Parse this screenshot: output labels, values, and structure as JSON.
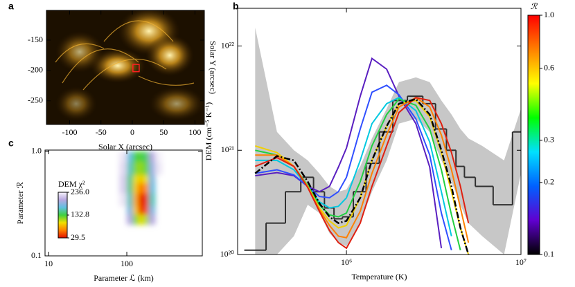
{
  "chart_data": [
    {
      "type": "image",
      "label": "a",
      "xlabel": "Solar X (arcsec)",
      "ylabel": "Solar Y (arcsec)",
      "xlim": [
        -137,
        115
      ],
      "ylim": [
        -289,
        -101
      ],
      "xticks": [
        -100,
        -50,
        0,
        50,
        100
      ],
      "yticks": [
        -150,
        -200,
        -250
      ],
      "region": {
        "x": [
          1,
          11
        ],
        "y": [
          -202,
          -190
        ],
        "color": "#ff2020"
      }
    },
    {
      "type": "line",
      "label": "b",
      "xlabel": "Temperature (K)",
      "ylabel": "DEM (cm⁻⁵ K⁻¹)",
      "xscale": "log",
      "yscale": "log",
      "xlim": [
        238000,
        10000000
      ],
      "ylim": [
        1e+20,
        2.3e+22
      ],
      "xticks": [
        {
          "value": 1000000,
          "label": "10⁶"
        },
        {
          "value": 10000000,
          "label": "10⁷"
        }
      ],
      "yticks": [
        {
          "value": 1e+20,
          "label": "10²⁰"
        },
        {
          "value": 1e+21,
          "label": "10²¹"
        },
        {
          "value": 1e+22,
          "label": "10²²"
        }
      ],
      "x": [
        300000,
        400000,
        500000,
        600000,
        700000,
        800000,
        900000,
        1000000,
        1200000,
        1400000,
        1700000,
        2000000,
        2500000,
        3000000,
        3500000,
        4000000,
        4500000,
        5000000,
        6000000,
        8000000,
        10000000
      ],
      "band": {
        "color": "#b4b4b4",
        "upper": [
          1.5e+22,
          1.5e+21,
          1e+21,
          8e+20,
          6e+20,
          4.5e+20,
          4e+20,
          4.2e+20,
          7e+20,
          1.3e+21,
          2.5e+21,
          4.5e+21,
          5e+21,
          4.5e+21,
          3e+21,
          2.2e+21,
          1.6e+21,
          1.3e+21,
          1.1e+21,
          8e+20,
          2.5e+21
        ],
        "lower": [
          1e+20,
          1e+20,
          1.5e+20,
          3e+20,
          2.5e+20,
          1.6e+20,
          1.3e+20,
          1.2e+20,
          2e+20,
          4e+20,
          8e+20,
          1.8e+21,
          2e+21,
          1.5e+21,
          8e+20,
          5e+20,
          3e+20,
          2e+20,
          1.5e+20,
          1e+20,
          6e+20
        ]
      },
      "series": [
        {
          "style": "step",
          "color": "#303030",
          "values": [
            1.1e+20,
            2e+20,
            4e+20,
            5.5e+20,
            4e+20,
            2.8e+20,
            2.2e+20,
            2.3e+20,
            4e+20,
            7.5e+20,
            1.5e+21,
            3e+21,
            3.3e+21,
            2.8e+21,
            1.6e+21,
            1e+21,
            7e+20,
            5.5e+20,
            4.5e+20,
            3e+20,
            1.5e+21
          ]
        },
        {
          "style": "solid",
          "color": "#5a1fc0",
          "values": [
            5.7e+20,
            6.1e+20,
            5.7e+20,
            4.5e+20,
            4e+20,
            4.5e+20,
            6.9e+20,
            1.05e+21,
            3.3e+21,
            7.6e+21,
            6e+21,
            3.3e+21,
            1.8e+21,
            6.9e+20,
            1.15e+20,
            null,
            null,
            null,
            null,
            null,
            null
          ]
        },
        {
          "style": "solid",
          "color": "#3050ff",
          "values": [
            6e+20,
            6.5e+20,
            5.8e+20,
            4.5e+20,
            3.6e+20,
            3.5e+20,
            4e+20,
            5.5e+20,
            1.6e+21,
            3.6e+21,
            4.2e+21,
            3.4e+21,
            2e+21,
            9e+20,
            2.5e+20,
            1.1e+20,
            null,
            null,
            null,
            null,
            null
          ]
        },
        {
          "style": "solid",
          "color": "#00c8e0",
          "values": [
            8e+20,
            8e+20,
            6.5e+20,
            4.5e+20,
            3.2e+20,
            2.8e+20,
            2.9e+20,
            3.5e+20,
            8e+20,
            1.8e+21,
            2.8e+21,
            3.2e+21,
            2.4e+21,
            1.2e+21,
            4e+20,
            1.5e+20,
            null,
            null,
            null,
            null,
            null
          ]
        },
        {
          "style": "solid",
          "color": "#20d040",
          "values": [
            1e+21,
            9e+20,
            7e+20,
            4.6e+20,
            3e+20,
            2.4e+20,
            2.3e+20,
            2.5e+20,
            5e+20,
            1.1e+21,
            2.2e+21,
            3.1e+21,
            2.7e+21,
            1.6e+21,
            6.5e+20,
            2.4e+20,
            1.1e+20,
            null,
            null,
            null,
            null
          ]
        },
        {
          "style": "solid",
          "color": "#f0d000",
          "values": [
            1.1e+21,
            9.5e+20,
            7e+20,
            4.5e+20,
            2.8e+20,
            2.1e+20,
            1.8e+20,
            1.9e+20,
            3.5e+20,
            8e+20,
            1.7e+21,
            2.8e+21,
            3e+21,
            2.1e+21,
            9.5e+20,
            4e+20,
            1.8e+20,
            1e+20,
            null,
            null,
            null
          ]
        },
        {
          "style": "solid",
          "color": "#ff8000",
          "values": [
            9e+20,
            9e+20,
            7e+20,
            4.4e+20,
            2.7e+20,
            1.9e+20,
            1.5e+20,
            1.45e+20,
            2.6e+20,
            6e+20,
            1.4e+21,
            2.6e+21,
            3.2e+21,
            2.6e+21,
            1.4e+21,
            6.5e+20,
            2.8e+20,
            1.3e+20,
            null,
            null,
            null
          ]
        },
        {
          "style": "solid",
          "color": "#e02010",
          "values": [
            7e+20,
            8.5e+20,
            7e+20,
            4.4e+20,
            2.6e+20,
            1.7e+20,
            1.3e+20,
            1.15e+20,
            2e+20,
            4.5e+20,
            1.1e+21,
            2.3e+21,
            3.2e+21,
            3e+21,
            1.8e+21,
            9.5e+20,
            4.5e+20,
            2e+20,
            null,
            null,
            null
          ]
        },
        {
          "style": "dashdot",
          "color": "#000000",
          "values": [
            6e+20,
            8.8e+20,
            8e+20,
            5e+20,
            3.1e+20,
            2.3e+20,
            2e+20,
            2.1e+20,
            3.5e+20,
            8e+20,
            1.7e+21,
            2.8e+21,
            3.1e+21,
            2.2e+21,
            1e+21,
            4.5e+20,
            1.8e+20,
            1e+20,
            null,
            null,
            null
          ]
        }
      ],
      "colorbar": {
        "title": "ℛ",
        "scale": "log",
        "lim": [
          0.1,
          1
        ],
        "ticks": [
          0.1,
          0.2,
          0.3,
          0.6,
          {
            "value": 1,
            "label": "1.0"
          }
        ],
        "colors": [
          "#000000",
          "#6000d0",
          "#0060ff",
          "#00e0ff",
          "#00ff00",
          "#ffff00",
          "#ff8000",
          "#ff0000"
        ]
      }
    },
    {
      "type": "heatmap",
      "label": "c",
      "xlabel": "Parameter ℒ (km)",
      "ylabel": "Parameter ℛ",
      "xscale": "log",
      "yscale": "log",
      "xlim": [
        9,
        923
      ],
      "ylim": [
        0.1,
        1.03
      ],
      "xticks": [
        10,
        100
      ],
      "yticks": [
        0.1,
        {
          "value": 1,
          "label": "1.0"
        }
      ],
      "x_edges": [
        80,
        100,
        120,
        140,
        160,
        190,
        230,
        280
      ],
      "y_edges": [
        0.2,
        0.25,
        0.3,
        0.4,
        0.5,
        0.6,
        0.8,
        1.0
      ],
      "values": [
        [
          null,
          200,
          120,
          100,
          110,
          200,
          null
        ],
        [
          null,
          180,
          90,
          40,
          50,
          180,
          null
        ],
        [
          230,
          160,
          80,
          35,
          40,
          160,
          null
        ],
        [
          220,
          150,
          90,
          60,
          70,
          170,
          null
        ],
        [
          220,
          150,
          100,
          90,
          100,
          180,
          null
        ],
        [
          225,
          160,
          120,
          115,
          125,
          190,
          230
        ],
        [
          230,
          170,
          130,
          130,
          140,
          200,
          235
        ]
      ],
      "colorbar": {
        "title": "DEM χ²",
        "lim": [
          29.5,
          236
        ],
        "ticks": [
          {
            "value": 236,
            "label": "236.0"
          },
          132.8,
          29.5
        ],
        "colors": [
          "#e01000",
          "#ff8000",
          "#f0e000",
          "#40d040",
          "#60c0e0",
          "#b8a8e0",
          "#f6f2fa"
        ]
      }
    }
  ]
}
